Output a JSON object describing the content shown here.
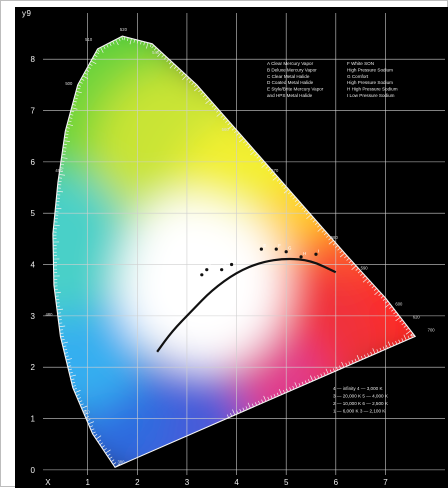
{
  "chart_data": {
    "type": "scatter",
    "title": "",
    "xlabel": "x",
    "ylabel": "y",
    "xlim": [
      0.1,
      8.2
    ],
    "ylim": [
      -0.1,
      8.9
    ],
    "x_ticks": [
      "X",
      "1",
      "2",
      "3",
      "4",
      "5",
      "6",
      "7"
    ],
    "y_ticks": [
      "0",
      "1",
      "2",
      "3",
      "4",
      "5",
      "6",
      "7",
      "8",
      "9"
    ],
    "grid": true,
    "legend_position": "top-right",
    "legend": {
      "left": [
        "A  Clear Mercury Vapor",
        "B  Deluxe Mercury Vapor",
        "C  Clear Metal Halide",
        "D  Coated Metal Halide",
        "E  Style/Brite Mercury Vapor",
        "    and HPS Metal Halide"
      ],
      "right": [
        "F  White SON",
        "    High Pressure Sodium",
        "G  Comfort",
        "    High Pressure Sodium",
        "H  High Pressure Sodium",
        "I  Low Pressure Sodium"
      ]
    },
    "temperature_key": [
      "4 — infinity      4 — 3,000 K",
      "3 — 20,000 K     5 — 4,000 K",
      "2 — 10,000 K     6 — 2,500 K",
      "1 — 6,000 K       3 — 2,100 K"
    ],
    "wavelength_labels": [
      {
        "label": "380",
        "x": 1.6,
        "y": 0.12
      },
      {
        "label": "460",
        "x": 0.9,
        "y": 1.1
      },
      {
        "label": "480",
        "x": 0.15,
        "y": 3.0
      },
      {
        "label": "490",
        "x": 0.35,
        "y": 5.8
      },
      {
        "label": "500",
        "x": 0.55,
        "y": 7.5
      },
      {
        "label": "510",
        "x": 0.95,
        "y": 8.35
      },
      {
        "label": "520",
        "x": 1.65,
        "y": 8.55
      },
      {
        "label": "540",
        "x": 2.3,
        "y": 8.1
      },
      {
        "label": "560",
        "x": 3.7,
        "y": 6.6
      },
      {
        "label": "570",
        "x": 4.7,
        "y": 5.8
      },
      {
        "label": "580",
        "x": 5.9,
        "y": 4.5
      },
      {
        "label": "590",
        "x": 6.5,
        "y": 3.9
      },
      {
        "label": "600",
        "x": 7.2,
        "y": 3.2
      },
      {
        "label": "620",
        "x": 7.55,
        "y": 2.95
      },
      {
        "label": "700",
        "x": 7.85,
        "y": 2.7
      }
    ],
    "planckian_locus": [
      {
        "x": 2.4,
        "y": 2.3
      },
      {
        "x": 2.7,
        "y": 2.7
      },
      {
        "x": 3.1,
        "y": 3.1
      },
      {
        "x": 3.5,
        "y": 3.5
      },
      {
        "x": 4.0,
        "y": 3.85
      },
      {
        "x": 4.5,
        "y": 4.05
      },
      {
        "x": 5.0,
        "y": 4.12
      },
      {
        "x": 5.5,
        "y": 4.08
      },
      {
        "x": 6.0,
        "y": 3.85
      }
    ],
    "lamp_points": [
      {
        "label": "A",
        "x": 3.3,
        "y": 3.8
      },
      {
        "label": "B",
        "x": 3.4,
        "y": 3.9
      },
      {
        "label": "C",
        "x": 3.7,
        "y": 3.9
      },
      {
        "label": "D",
        "x": 3.9,
        "y": 4.0
      },
      {
        "label": "E",
        "x": 4.5,
        "y": 4.3
      },
      {
        "label": "F",
        "x": 4.8,
        "y": 4.3
      },
      {
        "label": "G",
        "x": 5.0,
        "y": 4.25
      },
      {
        "label": "H",
        "x": 5.3,
        "y": 4.15
      },
      {
        "label": "I",
        "x": 5.6,
        "y": 4.2
      }
    ]
  }
}
